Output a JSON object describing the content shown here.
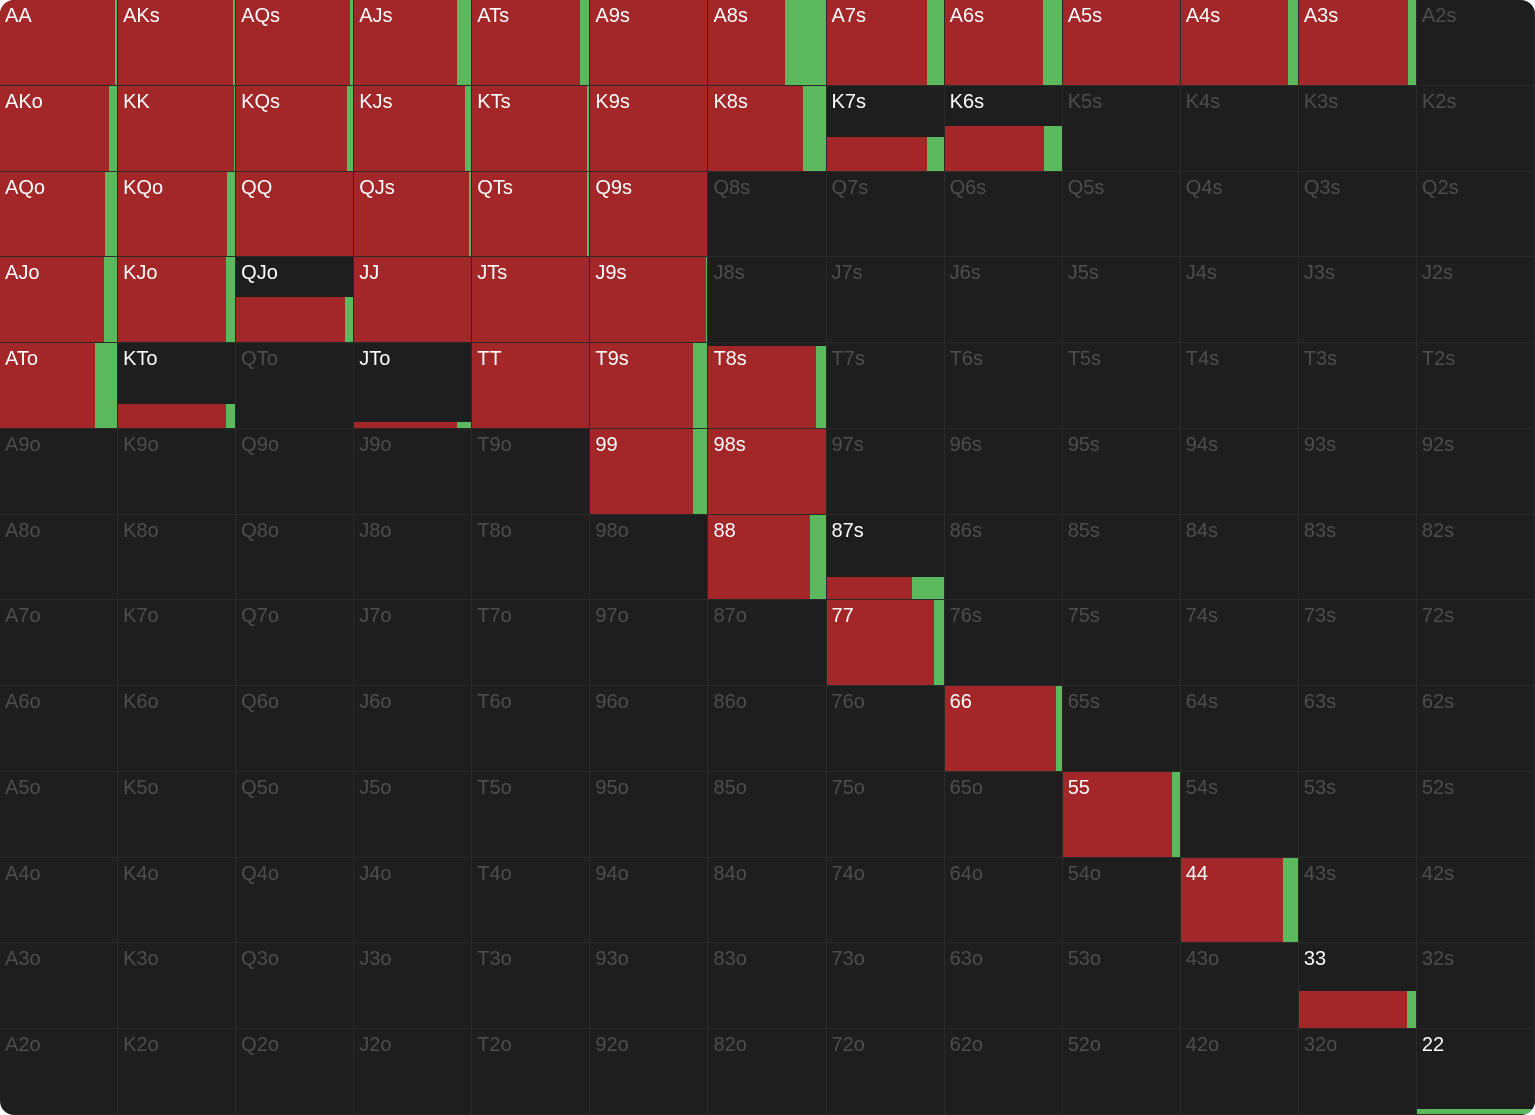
{
  "grid": {
    "rows": [
      [
        {
          "hand": "AA",
          "weight": 100,
          "raise": 98,
          "call": 2
        },
        {
          "hand": "AKs",
          "weight": 100,
          "raise": 98,
          "call": 2
        },
        {
          "hand": "AQs",
          "weight": 100,
          "raise": 97,
          "call": 3
        },
        {
          "hand": "AJs",
          "weight": 100,
          "raise": 88,
          "call": 12
        },
        {
          "hand": "ATs",
          "weight": 100,
          "raise": 92,
          "call": 8
        },
        {
          "hand": "A9s",
          "weight": 100,
          "raise": 100,
          "call": 0
        },
        {
          "hand": "A8s",
          "weight": 100,
          "raise": 65,
          "call": 35
        },
        {
          "hand": "A7s",
          "weight": 100,
          "raise": 86,
          "call": 14
        },
        {
          "hand": "A6s",
          "weight": 100,
          "raise": 84,
          "call": 16
        },
        {
          "hand": "A5s",
          "weight": 100,
          "raise": 100,
          "call": 0
        },
        {
          "hand": "A4s",
          "weight": 100,
          "raise": 92,
          "call": 8
        },
        {
          "hand": "A3s",
          "weight": 100,
          "raise": 93,
          "call": 7
        },
        {
          "hand": "A2s"
        }
      ],
      [
        {
          "hand": "AKo",
          "weight": 100,
          "raise": 93,
          "call": 7
        },
        {
          "hand": "KK",
          "weight": 100,
          "raise": 99,
          "call": 1
        },
        {
          "hand": "KQs",
          "weight": 100,
          "raise": 95,
          "call": 5
        },
        {
          "hand": "KJs",
          "weight": 100,
          "raise": 95,
          "call": 5
        },
        {
          "hand": "KTs",
          "weight": 100,
          "raise": 98,
          "call": 2
        },
        {
          "hand": "K9s",
          "weight": 100,
          "raise": 100,
          "call": 0
        },
        {
          "hand": "K8s",
          "weight": 100,
          "raise": 81,
          "call": 19
        },
        {
          "hand": "K7s",
          "weight": 40,
          "raise": 86,
          "call": 14
        },
        {
          "hand": "K6s",
          "weight": 53,
          "raise": 85,
          "call": 15
        },
        {
          "hand": "K5s"
        },
        {
          "hand": "K4s"
        },
        {
          "hand": "K3s"
        },
        {
          "hand": "K2s"
        }
      ],
      [
        {
          "hand": "AQo",
          "weight": 100,
          "raise": 90,
          "call": 10
        },
        {
          "hand": "KQo",
          "weight": 100,
          "raise": 93,
          "call": 7
        },
        {
          "hand": "QQ",
          "weight": 100,
          "raise": 100,
          "call": 0
        },
        {
          "hand": "QJs",
          "weight": 100,
          "raise": 98,
          "call": 2
        },
        {
          "hand": "QTs",
          "weight": 100,
          "raise": 98,
          "call": 2
        },
        {
          "hand": "Q9s",
          "weight": 100,
          "raise": 100,
          "call": 0
        },
        {
          "hand": "Q8s"
        },
        {
          "hand": "Q7s"
        },
        {
          "hand": "Q6s"
        },
        {
          "hand": "Q5s"
        },
        {
          "hand": "Q4s"
        },
        {
          "hand": "Q3s"
        },
        {
          "hand": "Q2s"
        }
      ],
      [
        {
          "hand": "AJo",
          "weight": 100,
          "raise": 89,
          "call": 11
        },
        {
          "hand": "KJo",
          "weight": 100,
          "raise": 92,
          "call": 8
        },
        {
          "hand": "QJo",
          "weight": 53,
          "raise": 93,
          "call": 7
        },
        {
          "hand": "JJ",
          "weight": 100,
          "raise": 100,
          "call": 0
        },
        {
          "hand": "JTs",
          "weight": 100,
          "raise": 100,
          "call": 0
        },
        {
          "hand": "J9s",
          "weight": 100,
          "raise": 99,
          "call": 1
        },
        {
          "hand": "J8s"
        },
        {
          "hand": "J7s"
        },
        {
          "hand": "J6s"
        },
        {
          "hand": "J5s"
        },
        {
          "hand": "J4s"
        },
        {
          "hand": "J3s"
        },
        {
          "hand": "J2s"
        }
      ],
      [
        {
          "hand": "ATo",
          "weight": 100,
          "raise": 81,
          "call": 19
        },
        {
          "hand": "KTo",
          "weight": 28,
          "raise": 92,
          "call": 8
        },
        {
          "hand": "QTo"
        },
        {
          "hand": "JTo",
          "weight": 7,
          "raise": 88,
          "call": 12
        },
        {
          "hand": "TT",
          "weight": 100,
          "raise": 100,
          "call": 0
        },
        {
          "hand": "T9s",
          "weight": 100,
          "raise": 88,
          "call": 12
        },
        {
          "hand": "T8s",
          "weight": 97,
          "raise": 92,
          "call": 8
        },
        {
          "hand": "T7s"
        },
        {
          "hand": "T6s"
        },
        {
          "hand": "T5s"
        },
        {
          "hand": "T4s"
        },
        {
          "hand": "T3s"
        },
        {
          "hand": "T2s"
        }
      ],
      [
        {
          "hand": "A9o"
        },
        {
          "hand": "K9o"
        },
        {
          "hand": "Q9o"
        },
        {
          "hand": "J9o"
        },
        {
          "hand": "T9o"
        },
        {
          "hand": "99",
          "weight": 100,
          "raise": 88,
          "call": 12
        },
        {
          "hand": "98s",
          "weight": 100,
          "raise": 100,
          "call": 0
        },
        {
          "hand": "97s"
        },
        {
          "hand": "96s"
        },
        {
          "hand": "95s"
        },
        {
          "hand": "94s"
        },
        {
          "hand": "93s"
        },
        {
          "hand": "92s"
        }
      ],
      [
        {
          "hand": "A8o"
        },
        {
          "hand": "K8o"
        },
        {
          "hand": "Q8o"
        },
        {
          "hand": "J8o"
        },
        {
          "hand": "T8o"
        },
        {
          "hand": "98o"
        },
        {
          "hand": "88",
          "weight": 100,
          "raise": 87,
          "call": 13
        },
        {
          "hand": "87s",
          "weight": 26,
          "raise": 73,
          "call": 27
        },
        {
          "hand": "86s"
        },
        {
          "hand": "85s"
        },
        {
          "hand": "84s"
        },
        {
          "hand": "83s"
        },
        {
          "hand": "82s"
        }
      ],
      [
        {
          "hand": "A7o"
        },
        {
          "hand": "K7o"
        },
        {
          "hand": "Q7o"
        },
        {
          "hand": "J7o"
        },
        {
          "hand": "T7o"
        },
        {
          "hand": "97o"
        },
        {
          "hand": "87o"
        },
        {
          "hand": "77",
          "weight": 100,
          "raise": 92,
          "call": 8
        },
        {
          "hand": "76s"
        },
        {
          "hand": "75s"
        },
        {
          "hand": "74s"
        },
        {
          "hand": "73s"
        },
        {
          "hand": "72s"
        }
      ],
      [
        {
          "hand": "A6o"
        },
        {
          "hand": "K6o"
        },
        {
          "hand": "Q6o"
        },
        {
          "hand": "J6o"
        },
        {
          "hand": "T6o"
        },
        {
          "hand": "96o"
        },
        {
          "hand": "86o"
        },
        {
          "hand": "76o"
        },
        {
          "hand": "66",
          "weight": 100,
          "raise": 95,
          "call": 5
        },
        {
          "hand": "65s"
        },
        {
          "hand": "64s"
        },
        {
          "hand": "63s"
        },
        {
          "hand": "62s"
        }
      ],
      [
        {
          "hand": "A5o"
        },
        {
          "hand": "K5o"
        },
        {
          "hand": "Q5o"
        },
        {
          "hand": "J5o"
        },
        {
          "hand": "T5o"
        },
        {
          "hand": "95o"
        },
        {
          "hand": "85o"
        },
        {
          "hand": "75o"
        },
        {
          "hand": "65o"
        },
        {
          "hand": "55",
          "weight": 100,
          "raise": 93,
          "call": 7
        },
        {
          "hand": "54s"
        },
        {
          "hand": "53s"
        },
        {
          "hand": "52s"
        }
      ],
      [
        {
          "hand": "A4o"
        },
        {
          "hand": "K4o"
        },
        {
          "hand": "Q4o"
        },
        {
          "hand": "J4o"
        },
        {
          "hand": "T4o"
        },
        {
          "hand": "94o"
        },
        {
          "hand": "84o"
        },
        {
          "hand": "74o"
        },
        {
          "hand": "64o"
        },
        {
          "hand": "54o"
        },
        {
          "hand": "44",
          "weight": 100,
          "raise": 87,
          "call": 13
        },
        {
          "hand": "43s"
        },
        {
          "hand": "42s"
        }
      ],
      [
        {
          "hand": "A3o"
        },
        {
          "hand": "K3o"
        },
        {
          "hand": "Q3o"
        },
        {
          "hand": "J3o"
        },
        {
          "hand": "T3o"
        },
        {
          "hand": "93o"
        },
        {
          "hand": "83o"
        },
        {
          "hand": "73o"
        },
        {
          "hand": "63o"
        },
        {
          "hand": "53o"
        },
        {
          "hand": "43o"
        },
        {
          "hand": "33",
          "weight": 44,
          "raise": 92,
          "call": 8
        },
        {
          "hand": "32s"
        }
      ],
      [
        {
          "hand": "A2o"
        },
        {
          "hand": "K2o"
        },
        {
          "hand": "Q2o"
        },
        {
          "hand": "J2o"
        },
        {
          "hand": "T2o"
        },
        {
          "hand": "92o"
        },
        {
          "hand": "82o"
        },
        {
          "hand": "72o"
        },
        {
          "hand": "62o"
        },
        {
          "hand": "52o"
        },
        {
          "hand": "42o"
        },
        {
          "hand": "32o"
        },
        {
          "hand": "22",
          "weight": 6,
          "raise": 0,
          "call": 100
        }
      ]
    ],
    "raise_color": "#a32628",
    "call_color": "#5cb85c"
  }
}
